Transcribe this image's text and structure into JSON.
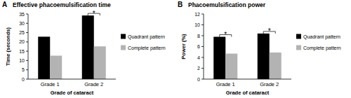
{
  "chart_data": [
    {
      "type": "bar",
      "panel": "A",
      "title": "Effective phacoemulsification time",
      "x_label": "Grade of cataract",
      "y_label": "Time (seconds)",
      "categories": [
        "Grade 1",
        "Grade 2"
      ],
      "series": [
        {
          "name": "Quadrant pattern",
          "color": "#000000",
          "values": [
            22.8,
            34.2
          ]
        },
        {
          "name": "Complete pattern",
          "color": "#b3b3b3",
          "values": [
            12.6,
            17.6
          ]
        }
      ],
      "ylim": [
        0,
        35
      ],
      "yticks": [
        0,
        5,
        10,
        15,
        20,
        25,
        30,
        35
      ],
      "grid": false,
      "legend": "right",
      "annotations": [
        {
          "text": "*",
          "category": "Grade 2"
        }
      ]
    },
    {
      "type": "bar",
      "panel": "B",
      "title": "Phacoemulsification power",
      "x_label": "Grade of cataract",
      "y_label": "Power (%)",
      "categories": [
        "Grade 1",
        "Grade 2"
      ],
      "series": [
        {
          "name": "Quadrant pattern",
          "color": "#000000",
          "values": [
            7.8,
            8.4
          ]
        },
        {
          "name": "Complete pattern",
          "color": "#b3b3b3",
          "values": [
            4.7,
            4.9
          ]
        }
      ],
      "ylim": [
        0,
        12
      ],
      "yticks": [
        0,
        2,
        4,
        6,
        8,
        10,
        12
      ],
      "grid": false,
      "legend": "right",
      "annotations": [
        {
          "text": "*",
          "category": "Grade 1"
        },
        {
          "text": "*",
          "category": "Grade 2"
        }
      ]
    }
  ]
}
